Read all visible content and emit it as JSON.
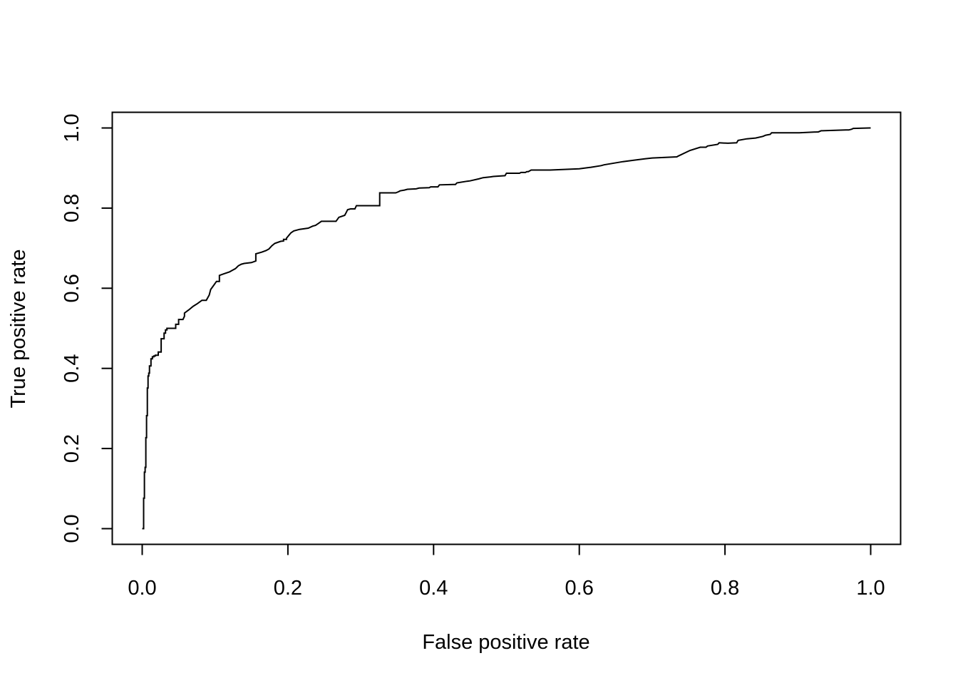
{
  "chart_data": {
    "type": "line",
    "title": "",
    "xlabel": "False positive rate",
    "ylabel": "True positive rate",
    "xlim": [
      0,
      1
    ],
    "ylim": [
      0,
      1
    ],
    "x_ticks": [
      "0.0",
      "0.2",
      "0.4",
      "0.6",
      "0.8",
      "1.0"
    ],
    "y_ticks": [
      "0.0",
      "0.2",
      "0.4",
      "0.6",
      "0.8",
      "1.0"
    ],
    "grid": false,
    "legend": "none",
    "line_color": "#000000",
    "series": [
      {
        "x": [
          0.0,
          0.002,
          0.002,
          0.003,
          0.003,
          0.004,
          0.004,
          0.005,
          0.005,
          0.006,
          0.006,
          0.007,
          0.007,
          0.008,
          0.008,
          0.009,
          0.009,
          0.01,
          0.01,
          0.012,
          0.012,
          0.014,
          0.014,
          0.016,
          0.016,
          0.018,
          0.018,
          0.022,
          0.022,
          0.026,
          0.026,
          0.03,
          0.03,
          0.032,
          0.032,
          0.034,
          0.034,
          0.046,
          0.046,
          0.05,
          0.05,
          0.056,
          0.058,
          0.058,
          0.064,
          0.07,
          0.076,
          0.082,
          0.088,
          0.092,
          0.094,
          0.098,
          0.102,
          0.106,
          0.106,
          0.112,
          0.12,
          0.124,
          0.128,
          0.132,
          0.136,
          0.14,
          0.15,
          0.156,
          0.156,
          0.164,
          0.17,
          0.174,
          0.178,
          0.182,
          0.19,
          0.194,
          0.194,
          0.198,
          0.198,
          0.204,
          0.208,
          0.216,
          0.228,
          0.234,
          0.238,
          0.242,
          0.246,
          0.266,
          0.27,
          0.278,
          0.28,
          0.282,
          0.286,
          0.292,
          0.294,
          0.326,
          0.326,
          0.348,
          0.352,
          0.354,
          0.36,
          0.364,
          0.376,
          0.38,
          0.394,
          0.396,
          0.406,
          0.408,
          0.43,
          0.432,
          0.446,
          0.45,
          0.462,
          0.468,
          0.478,
          0.482,
          0.498,
          0.5,
          0.518,
          0.52,
          0.526,
          0.528,
          0.53,
          0.534,
          0.56,
          0.6,
          0.612,
          0.616,
          0.63,
          0.634,
          0.66,
          0.69,
          0.7,
          0.734,
          0.736,
          0.752,
          0.766,
          0.774,
          0.776,
          0.79,
          0.792,
          0.804,
          0.816,
          0.818,
          0.83,
          0.842,
          0.852,
          0.856,
          0.862,
          0.864,
          0.902,
          0.926,
          0.928,
          0.932,
          0.934,
          0.966,
          0.97,
          0.974,
          0.976,
          0.998,
          1.0
        ],
        "y": [
          0.0,
          0.0,
          0.076,
          0.076,
          0.141,
          0.141,
          0.153,
          0.153,
          0.227,
          0.227,
          0.282,
          0.282,
          0.351,
          0.351,
          0.381,
          0.381,
          0.388,
          0.388,
          0.406,
          0.406,
          0.424,
          0.424,
          0.429,
          0.429,
          0.431,
          0.431,
          0.433,
          0.433,
          0.441,
          0.441,
          0.474,
          0.474,
          0.488,
          0.488,
          0.496,
          0.496,
          0.5,
          0.5,
          0.51,
          0.51,
          0.522,
          0.522,
          0.53,
          0.538,
          0.546,
          0.555,
          0.562,
          0.57,
          0.57,
          0.583,
          0.597,
          0.607,
          0.617,
          0.617,
          0.632,
          0.636,
          0.641,
          0.645,
          0.649,
          0.656,
          0.66,
          0.662,
          0.664,
          0.668,
          0.686,
          0.69,
          0.694,
          0.698,
          0.706,
          0.712,
          0.717,
          0.718,
          0.722,
          0.722,
          0.725,
          0.738,
          0.743,
          0.747,
          0.75,
          0.755,
          0.757,
          0.762,
          0.767,
          0.767,
          0.777,
          0.782,
          0.789,
          0.796,
          0.798,
          0.798,
          0.806,
          0.806,
          0.838,
          0.838,
          0.841,
          0.843,
          0.845,
          0.847,
          0.848,
          0.85,
          0.851,
          0.853,
          0.853,
          0.858,
          0.859,
          0.863,
          0.867,
          0.868,
          0.873,
          0.876,
          0.878,
          0.879,
          0.881,
          0.887,
          0.887,
          0.889,
          0.889,
          0.891,
          0.891,
          0.895,
          0.895,
          0.898,
          0.901,
          0.902,
          0.906,
          0.908,
          0.916,
          0.923,
          0.925,
          0.928,
          0.93,
          0.944,
          0.952,
          0.952,
          0.955,
          0.959,
          0.963,
          0.962,
          0.963,
          0.969,
          0.973,
          0.975,
          0.979,
          0.982,
          0.984,
          0.988,
          0.988,
          0.99,
          0.99,
          0.993,
          0.993,
          0.995,
          0.995,
          0.997,
          0.999,
          1.0,
          1.0
        ]
      }
    ]
  }
}
